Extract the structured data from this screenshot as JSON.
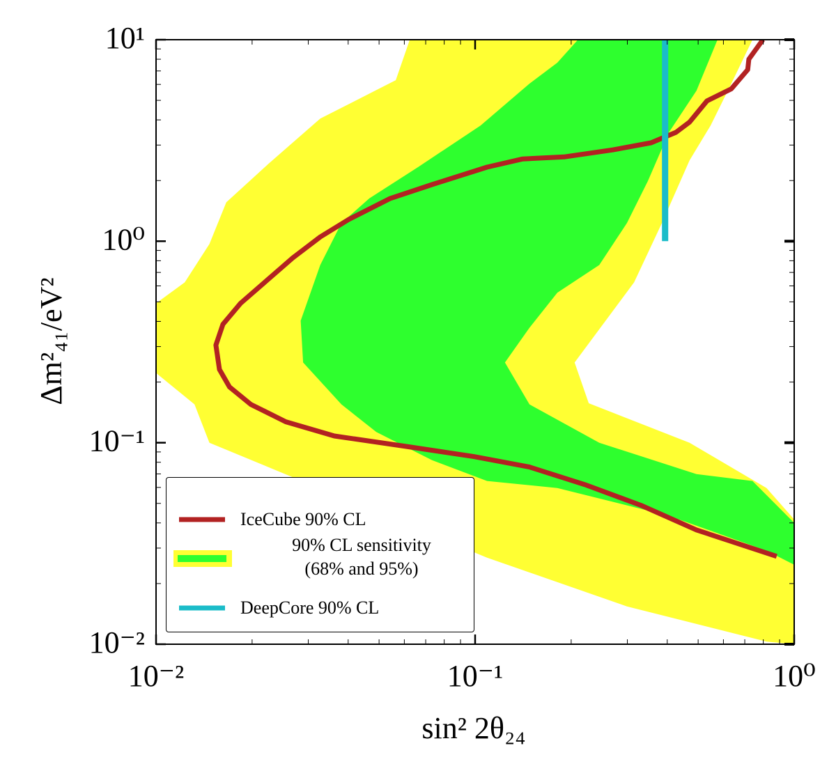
{
  "chart_data": {
    "type": "region",
    "xlabel": "sin² 2θ₂₄",
    "ylabel": "Δm²₄₁/eV²",
    "xscale": "log",
    "yscale": "log",
    "xlim": [
      0.01,
      1
    ],
    "ylim": [
      0.01,
      10
    ],
    "xticks": [
      {
        "value": 0.01,
        "label": "10⁻²"
      },
      {
        "value": 0.1,
        "label": "10⁻¹"
      },
      {
        "value": 1,
        "label": "10⁰"
      }
    ],
    "yticks": [
      {
        "value": 0.01,
        "label": "10⁻²"
      },
      {
        "value": 0.1,
        "label": "10⁻¹"
      },
      {
        "value": 1,
        "label": "10⁰"
      },
      {
        "value": 10,
        "label": "10¹"
      }
    ],
    "xminorticks": [
      0.02,
      0.03,
      0.04,
      0.05,
      0.06,
      0.07,
      0.08,
      0.09,
      0.2,
      0.3,
      0.4,
      0.5,
      0.6,
      0.7,
      0.8,
      0.9
    ],
    "yminorticks": [
      0.02,
      0.03,
      0.04,
      0.05,
      0.06,
      0.07,
      0.08,
      0.09,
      0.2,
      0.3,
      0.4,
      0.5,
      0.6,
      0.7,
      0.8,
      0.9,
      2,
      3,
      4,
      5,
      6,
      7,
      8,
      9
    ],
    "legend": "lower left",
    "series": [
      {
        "name": "IceCube 90% CL",
        "color": "#b22222",
        "x": [
          0.798,
          0.721,
          0.715,
          0.635,
          0.533,
          0.47,
          0.426,
          0.356,
          0.27,
          0.19,
          0.141,
          0.109,
          0.0733,
          0.0542,
          0.0401,
          0.0327,
          0.0268,
          0.0219,
          0.0184,
          0.0162,
          0.0154,
          0.0158,
          0.017,
          0.0198,
          0.0255,
          0.0362,
          0.0598,
          0.0991,
          0.148,
          0.221,
          0.331,
          0.494,
          0.881
        ],
        "values": [
          10,
          8.0,
          7.1,
          5.7,
          4.97,
          3.9,
          3.47,
          3.08,
          2.84,
          2.62,
          2.56,
          2.33,
          1.91,
          1.63,
          1.28,
          1.05,
          0.826,
          0.625,
          0.492,
          0.387,
          0.305,
          0.231,
          0.189,
          0.155,
          0.127,
          0.108,
          0.0962,
          0.0853,
          0.0757,
          0.0619,
          0.0489,
          0.0369,
          0.0273
        ]
      },
      {
        "name": "90% CL sensitivity\n(68% and 95%)",
        "bands": [
          {
            "color": "#ffff33",
            "x": [
              0.0624,
              0.0564,
              0.0327,
              0.0225,
              0.0166,
              0.0147,
              0.0123,
              0.01,
              0.01,
              0.0132,
              0.0147,
              0.109,
              0.299,
              0.819,
              1,
              1,
              0.819,
              0.47,
              0.227,
              0.205,
              0.315,
              0.385,
              0.47,
              0.547,
              0.635,
              0.74
            ],
            "values": [
              10,
              6.3,
              4.06,
              2.42,
              1.56,
              0.968,
              0.625,
              0.492,
              0.222,
              0.155,
              0.1,
              0.0269,
              0.0154,
              0.0103,
              0.01,
              0.0416,
              0.0596,
              0.1,
              0.157,
              0.25,
              0.625,
              1.23,
              2.52,
              3.75,
              6.05,
              10
            ]
          },
          {
            "color": "#2eff2e",
            "x": [
              0.21,
              0.575,
              0.494,
              0.405,
              0.348,
              0.299,
              0.245,
              0.181,
              0.148,
              0.124,
              0.148,
              0.245,
              0.494,
              0.74,
              1,
              1,
              0.819,
              0.405,
              0.181,
              0.109,
              0.0733,
              0.049,
              0.0381,
              0.0289,
              0.0284,
              0.0327,
              0.0381,
              0.0466,
              0.0662,
              0.104,
              0.148,
              0.181
            ],
            "values": [
              10,
              10,
              5.58,
              3.47,
              1.99,
              1.23,
              0.762,
              0.555,
              0.372,
              0.25,
              0.155,
              0.1,
              0.0698,
              0.0646,
              0.04,
              0.0248,
              0.0291,
              0.0434,
              0.0596,
              0.0646,
              0.0819,
              0.113,
              0.155,
              0.25,
              0.403,
              0.762,
              1.23,
              1.63,
              2.33,
              3.75,
              6.05,
              7.69
            ]
          }
        ]
      },
      {
        "name": "DeepCore 90% CL",
        "color": "#1bbcc9",
        "x": [
          0.394,
          0.394
        ],
        "values": [
          1,
          10
        ]
      }
    ]
  }
}
